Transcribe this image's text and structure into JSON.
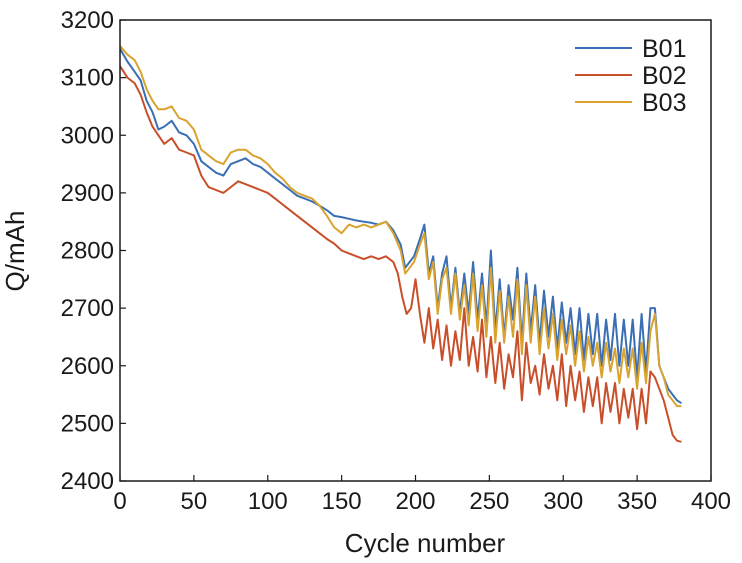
{
  "chart_data": {
    "type": "line",
    "title": "",
    "xlabel": "Cycle number",
    "ylabel": "Q/mAh",
    "xlim": [
      0,
      400
    ],
    "ylim": [
      2400,
      3200
    ],
    "xticks": [
      0,
      50,
      100,
      150,
      200,
      250,
      300,
      350,
      400
    ],
    "yticks": [
      2400,
      2500,
      2600,
      2700,
      2800,
      2900,
      3000,
      3100,
      3200
    ],
    "xtick_labels": [
      "0",
      "50",
      "100",
      "150",
      "200",
      "250",
      "300",
      "350",
      "400"
    ],
    "ytick_labels": [
      "2400",
      "2500",
      "2600",
      "2700",
      "2800",
      "2900",
      "3000",
      "3100",
      "3200"
    ],
    "grid": false,
    "legend_position": "top-right",
    "series": [
      {
        "name": "B01",
        "color": "#3a6fb5",
        "points": [
          [
            0,
            3150
          ],
          [
            5,
            3128
          ],
          [
            10,
            3110
          ],
          [
            14,
            3095
          ],
          [
            18,
            3060
          ],
          [
            22,
            3040
          ],
          [
            26,
            3010
          ],
          [
            30,
            3015
          ],
          [
            35,
            3025
          ],
          [
            40,
            3005
          ],
          [
            45,
            3000
          ],
          [
            50,
            2985
          ],
          [
            55,
            2955
          ],
          [
            60,
            2945
          ],
          [
            65,
            2935
          ],
          [
            70,
            2930
          ],
          [
            75,
            2950
          ],
          [
            80,
            2955
          ],
          [
            85,
            2960
          ],
          [
            90,
            2950
          ],
          [
            95,
            2945
          ],
          [
            100,
            2935
          ],
          [
            105,
            2925
          ],
          [
            110,
            2915
          ],
          [
            115,
            2905
          ],
          [
            120,
            2895
          ],
          [
            125,
            2890
          ],
          [
            130,
            2885
          ],
          [
            135,
            2878
          ],
          [
            140,
            2870
          ],
          [
            145,
            2860
          ],
          [
            150,
            2858
          ],
          [
            155,
            2855
          ],
          [
            160,
            2852
          ],
          [
            165,
            2850
          ],
          [
            170,
            2848
          ],
          [
            175,
            2845
          ],
          [
            180,
            2850
          ],
          [
            185,
            2835
          ],
          [
            190,
            2810
          ],
          [
            193,
            2770
          ],
          [
            196,
            2780
          ],
          [
            199,
            2790
          ],
          [
            203,
            2820
          ],
          [
            206,
            2845
          ],
          [
            209,
            2760
          ],
          [
            212,
            2790
          ],
          [
            215,
            2700
          ],
          [
            218,
            2760
          ],
          [
            221,
            2790
          ],
          [
            224,
            2700
          ],
          [
            227,
            2770
          ],
          [
            230,
            2690
          ],
          [
            233,
            2760
          ],
          [
            236,
            2690
          ],
          [
            239,
            2780
          ],
          [
            242,
            2680
          ],
          [
            245,
            2760
          ],
          [
            248,
            2670
          ],
          [
            251,
            2800
          ],
          [
            254,
            2660
          ],
          [
            257,
            2750
          ],
          [
            260,
            2650
          ],
          [
            263,
            2740
          ],
          [
            266,
            2680
          ],
          [
            269,
            2770
          ],
          [
            272,
            2640
          ],
          [
            275,
            2760
          ],
          [
            278,
            2660
          ],
          [
            281,
            2740
          ],
          [
            284,
            2640
          ],
          [
            287,
            2730
          ],
          [
            290,
            2650
          ],
          [
            293,
            2720
          ],
          [
            296,
            2630
          ],
          [
            299,
            2710
          ],
          [
            302,
            2640
          ],
          [
            305,
            2700
          ],
          [
            308,
            2620
          ],
          [
            311,
            2700
          ],
          [
            314,
            2610
          ],
          [
            317,
            2690
          ],
          [
            320,
            2620
          ],
          [
            323,
            2690
          ],
          [
            326,
            2600
          ],
          [
            329,
            2680
          ],
          [
            332,
            2610
          ],
          [
            335,
            2690
          ],
          [
            338,
            2600
          ],
          [
            341,
            2680
          ],
          [
            344,
            2600
          ],
          [
            347,
            2680
          ],
          [
            350,
            2580
          ],
          [
            353,
            2690
          ],
          [
            356,
            2590
          ],
          [
            359,
            2700
          ],
          [
            362,
            2700
          ],
          [
            365,
            2600
          ],
          [
            368,
            2580
          ],
          [
            371,
            2560
          ],
          [
            374,
            2550
          ],
          [
            377,
            2540
          ],
          [
            380,
            2535
          ]
        ]
      },
      {
        "name": "B02",
        "color": "#c84f2a",
        "points": [
          [
            0,
            3120
          ],
          [
            5,
            3100
          ],
          [
            10,
            3090
          ],
          [
            14,
            3070
          ],
          [
            18,
            3040
          ],
          [
            22,
            3015
          ],
          [
            26,
            3000
          ],
          [
            30,
            2985
          ],
          [
            35,
            2995
          ],
          [
            40,
            2975
          ],
          [
            45,
            2970
          ],
          [
            50,
            2965
          ],
          [
            55,
            2930
          ],
          [
            60,
            2910
          ],
          [
            65,
            2905
          ],
          [
            70,
            2900
          ],
          [
            75,
            2910
          ],
          [
            80,
            2920
          ],
          [
            85,
            2915
          ],
          [
            90,
            2910
          ],
          [
            95,
            2905
          ],
          [
            100,
            2900
          ],
          [
            105,
            2890
          ],
          [
            110,
            2880
          ],
          [
            115,
            2870
          ],
          [
            120,
            2860
          ],
          [
            125,
            2850
          ],
          [
            130,
            2840
          ],
          [
            135,
            2830
          ],
          [
            140,
            2820
          ],
          [
            145,
            2812
          ],
          [
            150,
            2800
          ],
          [
            155,
            2795
          ],
          [
            160,
            2790
          ],
          [
            165,
            2785
          ],
          [
            170,
            2790
          ],
          [
            175,
            2785
          ],
          [
            180,
            2790
          ],
          [
            185,
            2780
          ],
          [
            188,
            2760
          ],
          [
            191,
            2720
          ],
          [
            194,
            2690
          ],
          [
            197,
            2700
          ],
          [
            200,
            2750
          ],
          [
            203,
            2690
          ],
          [
            206,
            2640
          ],
          [
            209,
            2700
          ],
          [
            212,
            2630
          ],
          [
            215,
            2680
          ],
          [
            218,
            2610
          ],
          [
            221,
            2670
          ],
          [
            224,
            2600
          ],
          [
            227,
            2660
          ],
          [
            230,
            2610
          ],
          [
            233,
            2700
          ],
          [
            236,
            2600
          ],
          [
            239,
            2650
          ],
          [
            242,
            2590
          ],
          [
            245,
            2680
          ],
          [
            248,
            2580
          ],
          [
            251,
            2650
          ],
          [
            254,
            2570
          ],
          [
            257,
            2640
          ],
          [
            260,
            2560
          ],
          [
            263,
            2620
          ],
          [
            266,
            2580
          ],
          [
            269,
            2660
          ],
          [
            272,
            2540
          ],
          [
            275,
            2640
          ],
          [
            278,
            2570
          ],
          [
            281,
            2600
          ],
          [
            284,
            2550
          ],
          [
            287,
            2620
          ],
          [
            290,
            2560
          ],
          [
            293,
            2600
          ],
          [
            296,
            2540
          ],
          [
            299,
            2620
          ],
          [
            302,
            2530
          ],
          [
            305,
            2600
          ],
          [
            308,
            2540
          ],
          [
            311,
            2590
          ],
          [
            314,
            2520
          ],
          [
            317,
            2580
          ],
          [
            320,
            2530
          ],
          [
            323,
            2580
          ],
          [
            326,
            2500
          ],
          [
            329,
            2570
          ],
          [
            332,
            2520
          ],
          [
            335,
            2570
          ],
          [
            338,
            2500
          ],
          [
            341,
            2560
          ],
          [
            344,
            2510
          ],
          [
            347,
            2560
          ],
          [
            350,
            2490
          ],
          [
            353,
            2560
          ],
          [
            356,
            2500
          ],
          [
            359,
            2590
          ],
          [
            362,
            2580
          ],
          [
            365,
            2560
          ],
          [
            368,
            2540
          ],
          [
            371,
            2510
          ],
          [
            374,
            2480
          ],
          [
            377,
            2470
          ],
          [
            380,
            2468
          ]
        ]
      },
      {
        "name": "B03",
        "color": "#d9a32e",
        "points": [
          [
            0,
            3155
          ],
          [
            5,
            3140
          ],
          [
            10,
            3130
          ],
          [
            14,
            3110
          ],
          [
            18,
            3080
          ],
          [
            22,
            3060
          ],
          [
            26,
            3045
          ],
          [
            30,
            3045
          ],
          [
            35,
            3050
          ],
          [
            40,
            3030
          ],
          [
            45,
            3025
          ],
          [
            50,
            3010
          ],
          [
            55,
            2975
          ],
          [
            60,
            2965
          ],
          [
            65,
            2955
          ],
          [
            70,
            2950
          ],
          [
            75,
            2970
          ],
          [
            80,
            2975
          ],
          [
            85,
            2975
          ],
          [
            90,
            2965
          ],
          [
            95,
            2960
          ],
          [
            100,
            2950
          ],
          [
            105,
            2935
          ],
          [
            110,
            2925
          ],
          [
            115,
            2910
          ],
          [
            120,
            2900
          ],
          [
            125,
            2895
          ],
          [
            130,
            2890
          ],
          [
            135,
            2878
          ],
          [
            140,
            2860
          ],
          [
            145,
            2840
          ],
          [
            150,
            2830
          ],
          [
            155,
            2845
          ],
          [
            160,
            2840
          ],
          [
            165,
            2845
          ],
          [
            170,
            2840
          ],
          [
            175,
            2845
          ],
          [
            180,
            2850
          ],
          [
            185,
            2830
          ],
          [
            190,
            2800
          ],
          [
            193,
            2760
          ],
          [
            196,
            2770
          ],
          [
            199,
            2780
          ],
          [
            203,
            2810
          ],
          [
            206,
            2830
          ],
          [
            209,
            2750
          ],
          [
            212,
            2780
          ],
          [
            215,
            2690
          ],
          [
            218,
            2750
          ],
          [
            221,
            2770
          ],
          [
            224,
            2690
          ],
          [
            227,
            2760
          ],
          [
            230,
            2680
          ],
          [
            233,
            2740
          ],
          [
            236,
            2670
          ],
          [
            239,
            2760
          ],
          [
            242,
            2660
          ],
          [
            245,
            2740
          ],
          [
            248,
            2650
          ],
          [
            251,
            2770
          ],
          [
            254,
            2640
          ],
          [
            257,
            2730
          ],
          [
            260,
            2640
          ],
          [
            263,
            2720
          ],
          [
            266,
            2650
          ],
          [
            269,
            2750
          ],
          [
            272,
            2620
          ],
          [
            275,
            2740
          ],
          [
            278,
            2640
          ],
          [
            281,
            2720
          ],
          [
            284,
            2620
          ],
          [
            287,
            2700
          ],
          [
            290,
            2630
          ],
          [
            293,
            2690
          ],
          [
            296,
            2610
          ],
          [
            299,
            2680
          ],
          [
            302,
            2620
          ],
          [
            305,
            2670
          ],
          [
            308,
            2600
          ],
          [
            311,
            2660
          ],
          [
            314,
            2590
          ],
          [
            317,
            2650
          ],
          [
            320,
            2600
          ],
          [
            323,
            2640
          ],
          [
            326,
            2580
          ],
          [
            329,
            2640
          ],
          [
            332,
            2590
          ],
          [
            335,
            2630
          ],
          [
            338,
            2570
          ],
          [
            341,
            2630
          ],
          [
            344,
            2580
          ],
          [
            347,
            2630
          ],
          [
            350,
            2560
          ],
          [
            353,
            2640
          ],
          [
            356,
            2570
          ],
          [
            359,
            2660
          ],
          [
            362,
            2690
          ],
          [
            365,
            2600
          ],
          [
            368,
            2580
          ],
          [
            371,
            2550
          ],
          [
            374,
            2540
          ],
          [
            377,
            2530
          ],
          [
            380,
            2530
          ]
        ]
      }
    ]
  }
}
